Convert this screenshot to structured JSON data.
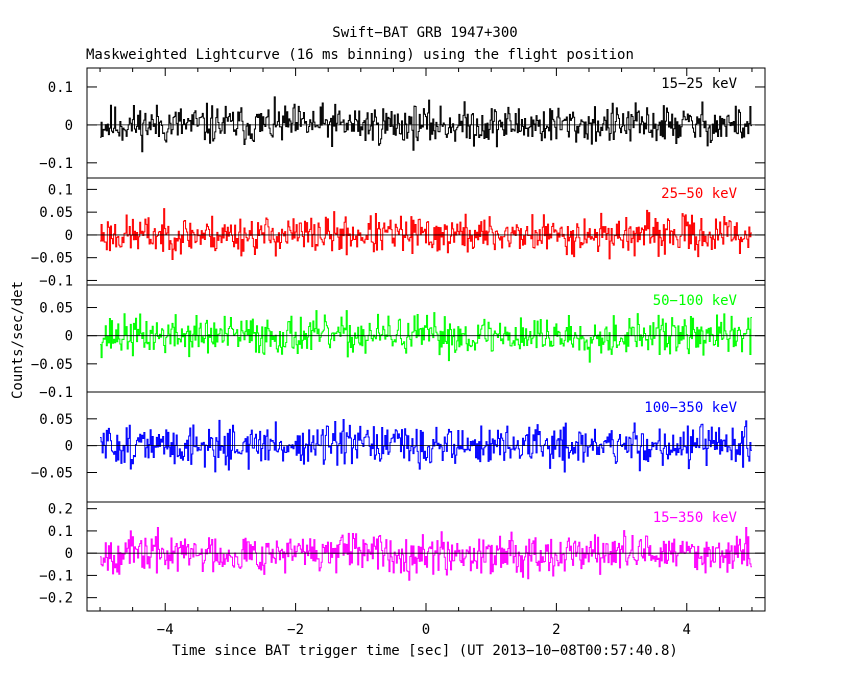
{
  "chart_data": {
    "type": "line",
    "title": "Swift−BAT GRB 1947+300",
    "subtitle": "Maskweighted Lightcurve (16 ms binning) using the flight position",
    "xlabel": "Time since BAT trigger time [sec] (UT 2013−10−08T00:57:40.8)",
    "ylabel": "Counts/sec/det",
    "xlim": [
      -5.2,
      5.2
    ],
    "x_ticks": [
      -4,
      -2,
      0,
      2,
      4
    ],
    "x_tick_labels": [
      "−4",
      "−2",
      "0",
      "2",
      "4"
    ],
    "time_range": [
      -5.0,
      5.0
    ],
    "bin_width_s": 0.016,
    "panels": [
      {
        "band": "15−25 keV",
        "color": "#000000",
        "ylim": [
          -0.14,
          0.15
        ],
        "y_ticks": [
          -0.1,
          0,
          0.1
        ],
        "y_tick_labels": [
          "−0.1",
          "0",
          "0.1"
        ],
        "noise_amplitude": 0.045,
        "seed": 11
      },
      {
        "band": "25−50 keV",
        "color": "#ff0000",
        "ylim": [
          -0.11,
          0.125
        ],
        "y_ticks": [
          -0.1,
          -0.05,
          0,
          0.05,
          0.1
        ],
        "y_tick_labels": [
          "−0.1",
          "−0.05",
          "0",
          "0.05",
          "0.1"
        ],
        "noise_amplitude": 0.036,
        "seed": 23
      },
      {
        "band": "50−100 keV",
        "color": "#00ff00",
        "ylim": [
          -0.1,
          0.09
        ],
        "y_ticks": [
          -0.1,
          -0.05,
          0,
          0.05
        ],
        "y_tick_labels": [
          "−0.1",
          "−0.05",
          "0",
          "0.05"
        ],
        "noise_amplitude": 0.03,
        "seed": 37
      },
      {
        "band": "100−350 keV",
        "color": "#0000ff",
        "ylim": [
          -0.105,
          0.1
        ],
        "y_ticks": [
          -0.05,
          0,
          0.05
        ],
        "y_tick_labels": [
          "−0.05",
          "0",
          "0.05"
        ],
        "noise_amplitude": 0.033,
        "seed": 51
      },
      {
        "band": "15−350 keV",
        "color": "#ff00ff",
        "ylim": [
          -0.26,
          0.23
        ],
        "y_ticks": [
          -0.2,
          -0.1,
          0,
          0.1,
          0.2
        ],
        "y_tick_labels": [
          "−0.2",
          "−0.1",
          "0",
          "0.1",
          "0.2"
        ],
        "noise_amplitude": 0.075,
        "seed": 67
      }
    ]
  }
}
